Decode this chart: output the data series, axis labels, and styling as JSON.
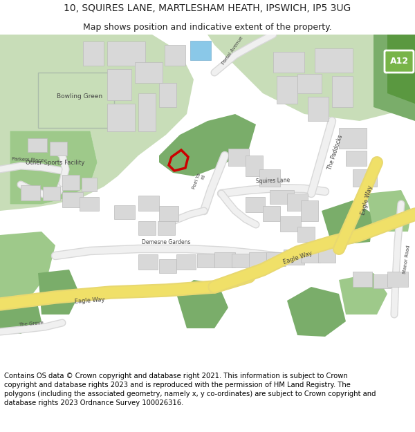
{
  "title_line1": "10, SQUIRES LANE, MARTLESHAM HEATH, IPSWICH, IP5 3UG",
  "title_line2": "Map shows position and indicative extent of the property.",
  "disclaimer": "Contains OS data © Crown copyright and database right 2021. This information is subject to Crown copyright and database rights 2023 and is reproduced with the permission of HM Land Registry. The polygons (including the associated geometry, namely x, y co-ordinates) are subject to Crown copyright and database rights 2023 Ordnance Survey 100026316.",
  "title_fontsize": 10,
  "subtitle_fontsize": 9,
  "disclaimer_fontsize": 7.2,
  "bg_color": "#ffffff",
  "map_bg": "#f2efe9",
  "road_yellow": "#f0e068",
  "green_light": "#c8ddb8",
  "green_dark": "#7aad6a",
  "green_mid": "#9ec98a",
  "building_gray": "#d8d8d8",
  "building_outline": "#bbbbbb",
  "plot_color": "#cc0000",
  "blue_building": "#8ac8e8",
  "road_gray": "#e8e8e8",
  "road_outline": "#cccccc",
  "a12_green": "#78b448",
  "text_dark": "#444444"
}
